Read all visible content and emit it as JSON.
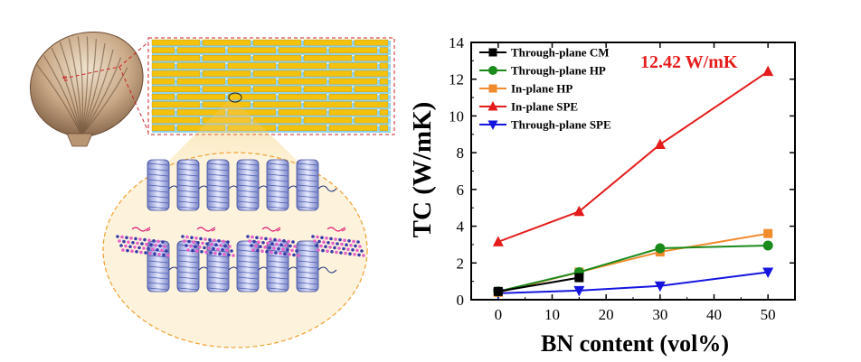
{
  "colors": {
    "cm": "#000000",
    "hp": "#1a8a1a",
    "inplane_hp": "#f28a2e",
    "inplane_spe": "#e51c1c",
    "through_spe": "#1515e0",
    "brick": "#f4c20d",
    "mortar": "#8fd3ea",
    "zoom_fill": "#f6d88a"
  },
  "illustration": {
    "shell_icon": "seashell-icon",
    "brick_icon": "brick-mortar-icon",
    "polymer_icon": "polymer-chain-icon",
    "bn_icon": "bn-sheet-icon"
  },
  "chart_data": {
    "type": "line",
    "x": [
      0,
      10,
      20,
      30,
      40,
      50
    ],
    "xlabel": "BN content (vol%)",
    "ylabel": "TC (W/mK)",
    "xlim": [
      -5,
      55
    ],
    "ylim": [
      0,
      14
    ],
    "xticks": [
      0,
      10,
      20,
      30,
      40,
      50
    ],
    "yticks": [
      0,
      2,
      4,
      6,
      8,
      10,
      12,
      14
    ],
    "legend_position": "top-left",
    "annotation": "12.42 W/mK",
    "series": [
      {
        "name": "Through-plane CM",
        "color": "#000000",
        "marker": "square",
        "x": [
          0,
          15
        ],
        "y": [
          0.45,
          1.2
        ]
      },
      {
        "name": "Through-plane HP",
        "color": "#1a8a1a",
        "marker": "circle",
        "x": [
          0,
          15,
          30,
          50
        ],
        "y": [
          0.45,
          1.5,
          2.8,
          2.95
        ]
      },
      {
        "name": "In-plane HP",
        "color": "#f28a2e",
        "marker": "square",
        "x": [
          0,
          15,
          30,
          50
        ],
        "y": [
          0.4,
          1.5,
          2.6,
          3.6
        ]
      },
      {
        "name": "In-plane SPE",
        "color": "#e51c1c",
        "marker": "triangle-up",
        "x": [
          0,
          15,
          30,
          50
        ],
        "y": [
          3.15,
          4.8,
          8.45,
          12.42
        ]
      },
      {
        "name": "Through-plane SPE",
        "color": "#1515e0",
        "marker": "triangle-down",
        "x": [
          0,
          15,
          30,
          50
        ],
        "y": [
          0.35,
          0.5,
          0.75,
          1.5
        ]
      }
    ]
  }
}
